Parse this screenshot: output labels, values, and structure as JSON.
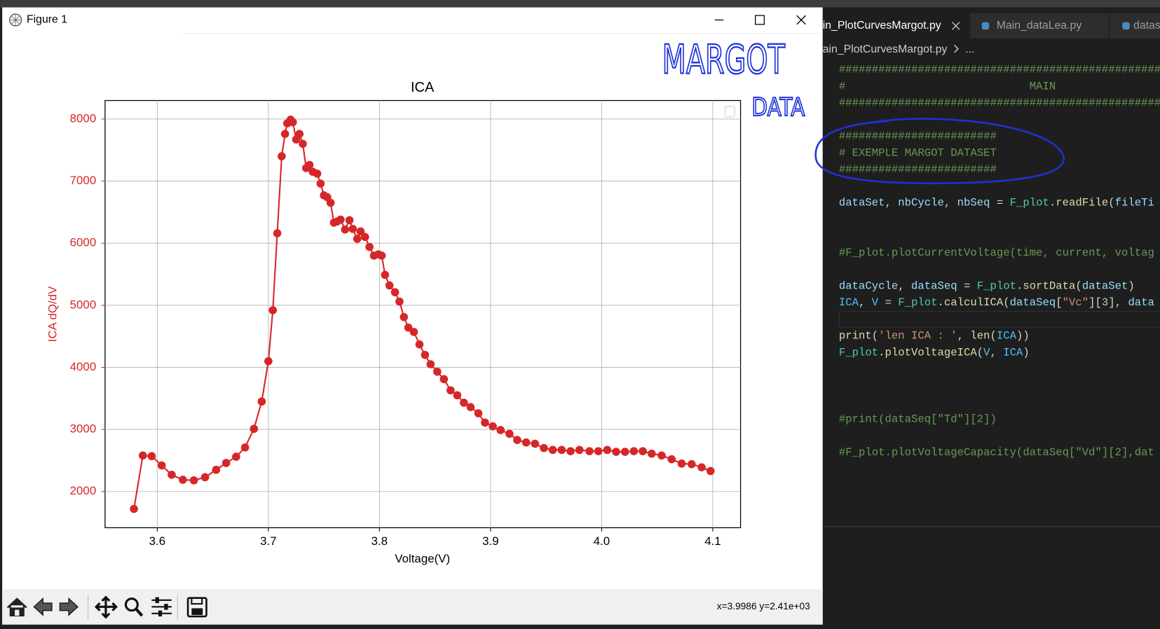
{
  "window": {
    "title": "Figure 1",
    "status": "x=3.9986 y=2.41e+03"
  },
  "chart_data": {
    "type": "line",
    "title": "ICA",
    "x_label": "Voltage(V)",
    "y_label": "ICA dQ/dV",
    "color": "#d62728",
    "axis_label_color": "#d62728",
    "grid": true,
    "markers": true,
    "xlim": [
      3.553,
      4.125
    ],
    "ylim": [
      1417,
      8298
    ],
    "xticks": [
      3.6,
      3.7,
      3.8,
      3.9,
      {
        "value": 4,
        "label": "4.0"
      },
      4.1
    ],
    "yticks": [
      2000,
      3000,
      4000,
      5000,
      6000,
      7000,
      8000
    ],
    "x": [
      3.579,
      3.587,
      3.595,
      3.604,
      3.613,
      3.623,
      3.633,
      3.643,
      3.653,
      3.662,
      3.671,
      3.679,
      3.687,
      3.694,
      3.7,
      3.704,
      3.708,
      3.712,
      3.715,
      3.717,
      3.72,
      3.722,
      3.725,
      3.728,
      3.731,
      3.734,
      3.737,
      3.74,
      3.744,
      3.747,
      3.75,
      3.753,
      3.756,
      3.759,
      3.762,
      3.765,
      3.769,
      3.773,
      3.776,
      3.78,
      3.783,
      3.787,
      3.791,
      3.795,
      3.799,
      3.802,
      3.805,
      3.809,
      3.814,
      3.818,
      3.822,
      3.826,
      3.831,
      3.836,
      3.841,
      3.846,
      3.852,
      3.858,
      3.864,
      3.87,
      3.876,
      3.882,
      3.889,
      3.895,
      3.902,
      3.909,
      3.917,
      3.924,
      3.932,
      3.94,
      3.948,
      3.956,
      3.964,
      3.972,
      3.98,
      3.989,
      3.997,
      4.005,
      4.013,
      4.021,
      4.029,
      4.037,
      4.045,
      4.054,
      4.063,
      4.072,
      4.081,
      4.09,
      4.098
    ],
    "values": [
      1720,
      2580,
      2570,
      2420,
      2270,
      2190,
      2180,
      2230,
      2350,
      2460,
      2560,
      2710,
      3010,
      3450,
      4100,
      4920,
      6160,
      7400,
      7760,
      7930,
      7990,
      7950,
      7670,
      7760,
      7600,
      7210,
      7260,
      7150,
      7120,
      6960,
      6770,
      6740,
      6650,
      6330,
      6350,
      6380,
      6220,
      6370,
      6230,
      6070,
      6190,
      6100,
      5940,
      5800,
      5820,
      5800,
      5490,
      5320,
      5210,
      5060,
      4810,
      4640,
      4570,
      4370,
      4200,
      4050,
      3930,
      3810,
      3630,
      3550,
      3430,
      3360,
      3260,
      3110,
      3050,
      2990,
      2930,
      2830,
      2790,
      2770,
      2700,
      2670,
      2670,
      2650,
      2670,
      2650,
      2650,
      2670,
      2640,
      2640,
      2650,
      2650,
      2610,
      2580,
      2520,
      2450,
      2440,
      2390,
      2330
    ]
  },
  "handwritten": [
    "MARGOT",
    "DATA"
  ],
  "editor": {
    "tabs": [
      "in_PlotCurvesMargot.py",
      "Main_dataLea.py",
      "datas"
    ],
    "breadcrumb": [
      "ain_PlotCurvesMargot.py",
      "..."
    ],
    "lines": [
      [
        {
          "text": "##################################################",
          "color": "#6a9955"
        }
      ],
      [
        {
          "text": "#                            MAIN",
          "color": "#6a9955"
        }
      ],
      [
        {
          "text": "##################################################",
          "color": "#6a9955"
        }
      ],
      [],
      [
        {
          "text": "########################",
          "color": "#6a9955"
        }
      ],
      [
        {
          "text": "# EXEMPLE MARGOT DATASET",
          "color": "#6a9955"
        }
      ],
      [
        {
          "text": "########################",
          "color": "#6a9955"
        }
      ],
      [],
      [
        {
          "text": "dataSet",
          "color": "#9cdcfe"
        },
        {
          "text": ", ",
          "color": "#d4d4d4"
        },
        {
          "text": "nbCycle",
          "color": "#9cdcfe"
        },
        {
          "text": ", ",
          "color": "#d4d4d4"
        },
        {
          "text": "nbSeq",
          "color": "#9cdcfe"
        },
        {
          "text": " = ",
          "color": "#d4d4d4"
        },
        {
          "text": "F_plot",
          "color": "#4ec9b0"
        },
        {
          "text": ".",
          "color": "#d4d4d4"
        },
        {
          "text": "readFile",
          "color": "#dcdcaa"
        },
        {
          "text": "(",
          "color": "#d4d4d4"
        },
        {
          "text": "fileTi",
          "color": "#9cdcfe"
        }
      ],
      [],
      [],
      [
        {
          "text": "#F_plot.plotCurrentVoltage(time, current, voltag",
          "color": "#6a9955"
        }
      ],
      [],
      [
        {
          "text": "dataCycle",
          "color": "#9cdcfe"
        },
        {
          "text": ", ",
          "color": "#d4d4d4"
        },
        {
          "text": "dataSeq",
          "color": "#9cdcfe"
        },
        {
          "text": " = ",
          "color": "#d4d4d4"
        },
        {
          "text": "F_plot",
          "color": "#4ec9b0"
        },
        {
          "text": ".",
          "color": "#d4d4d4"
        },
        {
          "text": "sortData",
          "color": "#dcdcaa"
        },
        {
          "text": "(",
          "color": "#d4d4d4"
        },
        {
          "text": "dataSet",
          "color": "#9cdcfe"
        },
        {
          "text": ")",
          "color": "#d4d4d4"
        }
      ],
      [
        {
          "text": "ICA",
          "color": "#4fc1ff"
        },
        {
          "text": ", ",
          "color": "#d4d4d4"
        },
        {
          "text": "V",
          "color": "#4fc1ff"
        },
        {
          "text": " = ",
          "color": "#d4d4d4"
        },
        {
          "text": "F_plot",
          "color": "#4ec9b0"
        },
        {
          "text": ".",
          "color": "#d4d4d4"
        },
        {
          "text": "calculICA",
          "color": "#dcdcaa"
        },
        {
          "text": "(",
          "color": "#d4d4d4"
        },
        {
          "text": "dataSeq",
          "color": "#9cdcfe"
        },
        {
          "text": "[",
          "color": "#d4d4d4"
        },
        {
          "text": "\"Vc\"",
          "color": "#ce9178"
        },
        {
          "text": "][",
          "color": "#d4d4d4"
        },
        {
          "text": "3",
          "color": "#b5cea8"
        },
        {
          "text": "], ",
          "color": "#d4d4d4"
        },
        {
          "text": "data",
          "color": "#9cdcfe"
        }
      ],
      [],
      [
        {
          "text": "print",
          "color": "#dcdcaa"
        },
        {
          "text": "(",
          "color": "#d4d4d4"
        },
        {
          "text": "'len ICA : '",
          "color": "#ce9178"
        },
        {
          "text": ", ",
          "color": "#d4d4d4"
        },
        {
          "text": "len",
          "color": "#dcdcaa"
        },
        {
          "text": "(",
          "color": "#d4d4d4"
        },
        {
          "text": "ICA",
          "color": "#4fc1ff"
        },
        {
          "text": "))",
          "color": "#d4d4d4"
        }
      ],
      [
        {
          "text": "F_plot",
          "color": "#4ec9b0"
        },
        {
          "text": ".",
          "color": "#d4d4d4"
        },
        {
          "text": "plotVoltageICA",
          "color": "#dcdcaa"
        },
        {
          "text": "(",
          "color": "#d4d4d4"
        },
        {
          "text": "V",
          "color": "#4fc1ff"
        },
        {
          "text": ", ",
          "color": "#d4d4d4"
        },
        {
          "text": "ICA",
          "color": "#4fc1ff"
        },
        {
          "text": ")",
          "color": "#d4d4d4"
        }
      ],
      [],
      [],
      [],
      [
        {
          "text": "#print(dataSeq[\"Td\"][2])",
          "color": "#6a9955"
        }
      ],
      [],
      [
        {
          "text": "#F_plot.plotVoltageCapacity(dataSeq[\"Vd\"][2],dat",
          "color": "#6a9955"
        }
      ]
    ]
  }
}
